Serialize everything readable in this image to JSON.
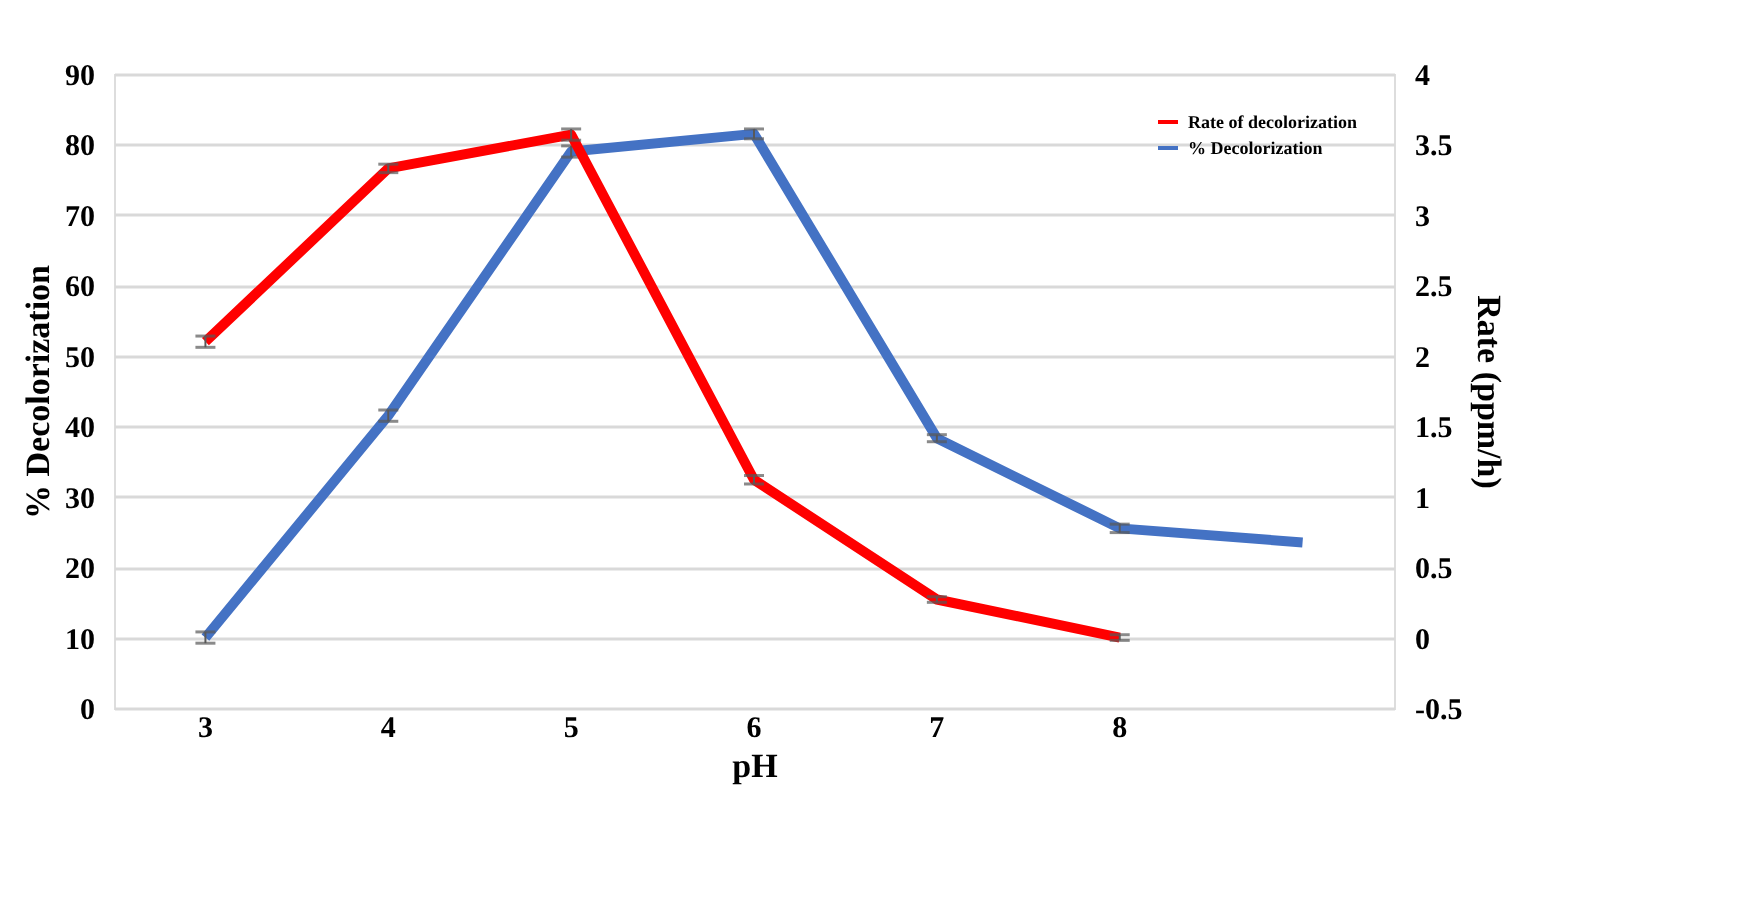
{
  "chart_data": {
    "type": "line",
    "xlabel": "pH",
    "ylabel": "% Decolorization",
    "y2label": "Rate  (ppm/h)",
    "categories": [
      "3",
      "4",
      "5",
      "6",
      "7",
      "8",
      null
    ],
    "series": [
      {
        "name": "Rate of decolorization",
        "color": "#ff0000",
        "axis": "y2",
        "values": [
          2.1,
          3.33,
          3.57,
          1.12,
          0.27,
          0.0,
          null
        ],
        "errors": [
          0.04,
          0.03,
          0.04,
          0.03,
          0.02,
          0.02,
          null
        ]
      },
      {
        "name": "% Decolorization",
        "color": "#4472c4",
        "values": [
          10,
          41.5,
          79,
          81.5,
          38.3,
          25.5,
          23.5
        ],
        "errors": [
          0.8,
          0.8,
          0.8,
          0.7,
          0.5,
          0.6,
          null
        ]
      }
    ],
    "ylim": [
      0,
      90
    ],
    "yticks": [
      0,
      10,
      20,
      30,
      40,
      50,
      60,
      70,
      80,
      90
    ],
    "y2lim": [
      -0.5,
      4
    ],
    "y2ticks": [
      -0.5,
      0,
      0.5,
      1,
      1.5,
      2,
      2.5,
      3,
      3.5,
      4
    ],
    "grid": "y",
    "legend": "top right",
    "marker": "none",
    "line_style": "solid"
  }
}
